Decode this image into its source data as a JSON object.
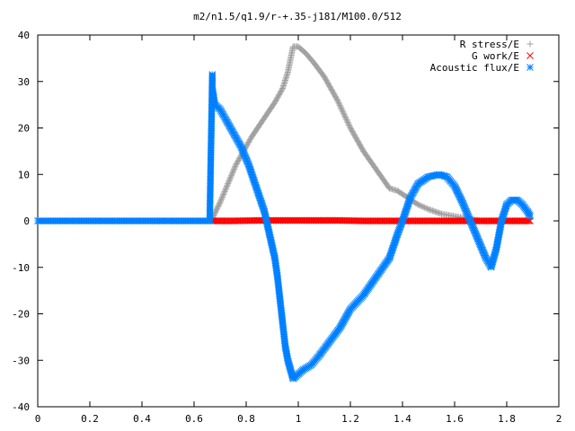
{
  "chart_data": {
    "type": "scatter",
    "title": "m2/n1.5/q1.9/r-+.35-j181/M100.0/512",
    "xlabel": "",
    "ylabel": "",
    "xlim": [
      0,
      2
    ],
    "ylim": [
      -40,
      40
    ],
    "x_ticks": [
      "0",
      "0.2",
      "0.4",
      "0.6",
      "0.8",
      "1",
      "1.2",
      "1.4",
      "1.6",
      "1.8",
      "2"
    ],
    "y_ticks": [
      "40",
      "30",
      "20",
      "10",
      "0",
      "-10",
      "-20",
      "-30",
      "-40"
    ],
    "grid": false,
    "legend_position": "top-right",
    "series": [
      {
        "name": "R stress/E",
        "marker": "plus",
        "color": "#a0a0a0",
        "x": [
          0.67,
          0.7,
          0.73,
          0.76,
          0.79,
          0.82,
          0.85,
          0.88,
          0.91,
          0.94,
          0.96,
          0.98,
          1.0,
          1.03,
          1.06,
          1.1,
          1.15,
          1.2,
          1.25,
          1.3,
          1.35,
          1.38,
          1.42,
          1.46,
          1.5,
          1.55,
          1.6,
          1.65,
          1.7,
          1.75,
          1.8,
          1.84,
          1.86,
          1.88
        ],
        "y": [
          0.5,
          4,
          8,
          12,
          15,
          18,
          20.5,
          23,
          25.5,
          28.5,
          32,
          37.5,
          37.5,
          36,
          34,
          31,
          26,
          20,
          15,
          11,
          7,
          6.5,
          5,
          3.5,
          2.5,
          1.5,
          1,
          0.5,
          0,
          0,
          0,
          0,
          0,
          0
        ]
      },
      {
        "name": "G work/E",
        "marker": "cross",
        "color": "#ff0000",
        "x": [
          0.67,
          0.75,
          0.85,
          0.95,
          1.05,
          1.15,
          1.25,
          1.35,
          1.45,
          1.55,
          1.65,
          1.75,
          1.85,
          1.89
        ],
        "y": [
          0,
          0,
          0.1,
          0.1,
          0.1,
          0.1,
          0,
          0,
          0,
          0,
          0,
          0,
          0,
          0
        ]
      },
      {
        "name": "Acoustic flux/E",
        "marker": "star",
        "color": "#0080ff",
        "x": [
          0,
          0.1,
          0.2,
          0.3,
          0.4,
          0.5,
          0.6,
          0.66,
          0.67,
          0.67,
          0.68,
          0.7,
          0.72,
          0.75,
          0.78,
          0.81,
          0.84,
          0.87,
          0.89,
          0.91,
          0.92,
          0.93,
          0.94,
          0.95,
          0.96,
          0.97,
          0.98,
          1.0,
          1.02,
          1.05,
          1.08,
          1.12,
          1.16,
          1.2,
          1.25,
          1.3,
          1.35,
          1.38,
          1.4,
          1.43,
          1.46,
          1.5,
          1.54,
          1.57,
          1.6,
          1.63,
          1.66,
          1.69,
          1.72,
          1.74,
          1.76,
          1.78,
          1.8,
          1.82,
          1.84,
          1.86,
          1.88,
          1.89
        ],
        "y": [
          0,
          0,
          0,
          0,
          0,
          0,
          0,
          0,
          31.5,
          28.5,
          25,
          24,
          22,
          19,
          16,
          12,
          7,
          2,
          -3,
          -8,
          -12,
          -17,
          -22,
          -27,
          -30,
          -32,
          -34,
          -33,
          -32,
          -31,
          -29,
          -26,
          -23,
          -19,
          -16,
          -12,
          -8,
          -3,
          0,
          5,
          8,
          9.5,
          10,
          9.5,
          7.5,
          4,
          0,
          -4,
          -8,
          -10,
          -6,
          0,
          3.5,
          4.5,
          4.5,
          3.5,
          2,
          1
        ]
      }
    ]
  }
}
